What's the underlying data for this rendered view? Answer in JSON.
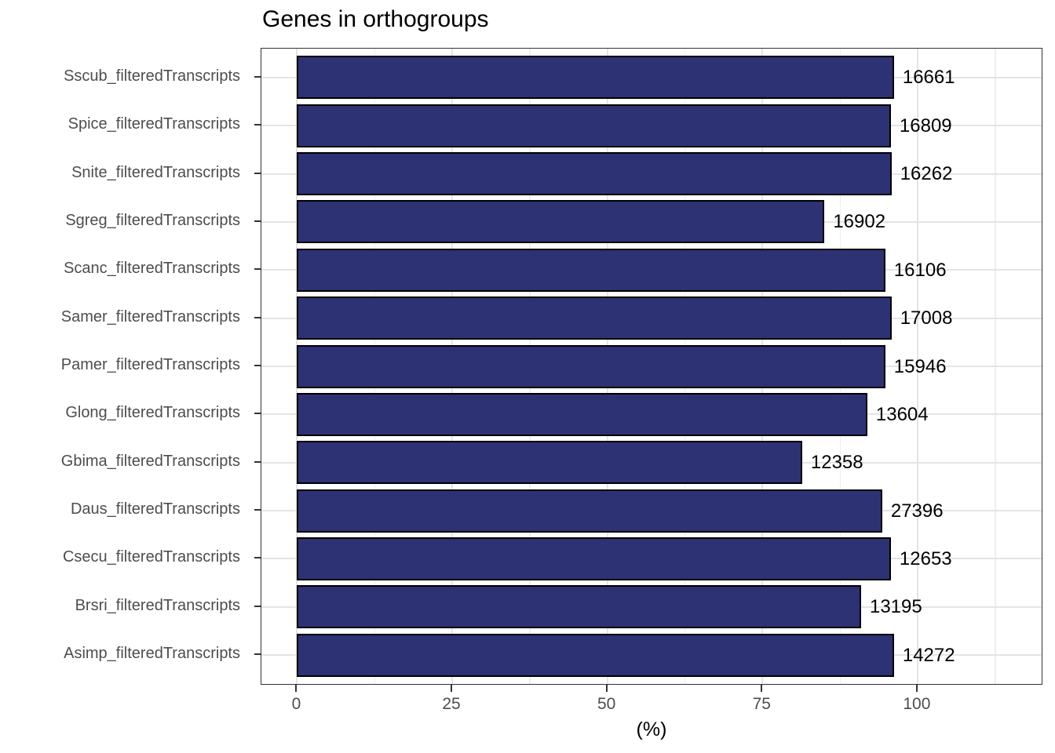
{
  "title": "Genes in orthogroups",
  "x_axis_label": "(%)",
  "style": {
    "bar_fill": "#2d3274",
    "bar_stroke": "#000000",
    "grid_major_color": "#e4e4e4",
    "grid_minor_color": "#efefef",
    "axis_text_color": "#4d4d4d",
    "panel_border_color": "#333333",
    "title_color": "#000000",
    "value_label_color": "#000000"
  },
  "chart_data": {
    "type": "bar",
    "orientation": "horizontal",
    "title": "Genes in orthogroups",
    "xlabel": "(%)",
    "ylabel": "",
    "grid": true,
    "legend": false,
    "xlim": [
      -5.75,
      120
    ],
    "x_ticks": [
      0,
      25,
      50,
      75,
      100
    ],
    "x_minor_gridlines": [
      12.5,
      37.5,
      62.5,
      87.5,
      112.5
    ],
    "categories_top_to_bottom": [
      "Sscub_filteredTranscripts",
      "Spice_filteredTranscripts",
      "Snite_filteredTranscripts",
      "Sgreg_filteredTranscripts",
      "Scanc_filteredTranscripts",
      "Samer_filteredTranscripts",
      "Pamer_filteredTranscripts",
      "Glong_filteredTranscripts",
      "Gbima_filteredTranscripts",
      "Daus_filteredTranscripts",
      "Csecu_filteredTranscripts",
      "Brsri_filteredTranscripts",
      "Asimp_filteredTranscripts"
    ],
    "percent_values": [
      96.2,
      95.7,
      95.8,
      85.0,
      94.8,
      95.8,
      94.8,
      91.9,
      81.4,
      94.3,
      95.7,
      90.9,
      96.2
    ],
    "bar_labels": [
      "16661",
      "16809",
      "16262",
      "16902",
      "16106",
      "17008",
      "15946",
      "13604",
      "12358",
      "27396",
      "12653",
      "13195",
      "14272"
    ]
  }
}
